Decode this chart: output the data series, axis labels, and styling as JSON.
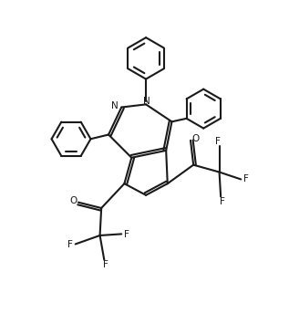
{
  "bg_color": "#ffffff",
  "line_color": "#1a1a1a",
  "line_width": 1.5,
  "figsize": [
    3.17,
    3.55
  ],
  "dpi": 100,
  "xlim": [
    0,
    10
  ],
  "ylim": [
    0,
    11
  ]
}
